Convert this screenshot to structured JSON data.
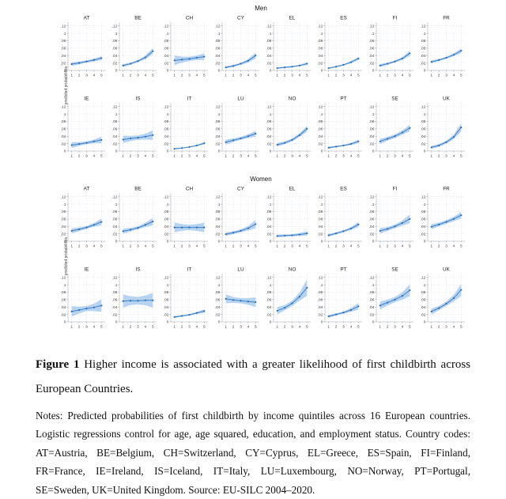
{
  "figure": {
    "panel_titles": {
      "men": "Men",
      "women": "Women"
    },
    "y_axis_label": "predicted probabilities"
  },
  "caption": {
    "figure_label": "Figure 1",
    "figure_title": "Higher income is associated with a greater likelihood of first childbirth across European Countries.",
    "notes": "Notes: Predicted probabilities of first childbirth by income quintiles across 16 European countries. Logistic regressions control for age, age squared, education, and employment status. Country codes: AT=Austria, BE=Belgium, CH=Switzerland, CY=Cyprus, EL=Greece, ES=Spain, FI=Finland, FR=France, IE=Ireland, IS=Iceland, IT=Italy, LU=Luxembourg, NO=Norway, PT=Portugal, SE=Sweden, UK=United Kingdom. Source: EU-SILC 2004–2020."
  },
  "colors": {
    "line": "#3f80c4",
    "marker": "#2e6cb4",
    "band": "#a9ccee",
    "grid": "#dbe3ed",
    "axis": "#98a0a8",
    "tick_text": "#3c3c3c"
  },
  "chart_data": {
    "type": "line",
    "x": [
      1,
      2,
      3,
      4,
      5
    ],
    "x_tick_labels": [
      "1",
      "2",
      "3",
      "4",
      "5"
    ],
    "ylim": [
      0,
      0.13
    ],
    "y_tick_values": [
      0,
      0.02,
      0.04,
      0.06,
      0.08,
      0.1,
      0.12
    ],
    "y_tick_labels": [
      "0",
      ".02",
      ".04",
      ".06",
      ".08",
      ".1",
      ".12"
    ],
    "ylabel": "predicted probabilities",
    "band_meaning": "confidence interval half-width per point",
    "panels": [
      {
        "group": "Men",
        "countries": [
          {
            "code": "AT",
            "values": [
              0.017,
              0.02,
              0.024,
              0.028,
              0.033
            ],
            "ci": [
              0.005,
              0.004,
              0.003,
              0.004,
              0.005
            ]
          },
          {
            "code": "BE",
            "values": [
              0.013,
              0.018,
              0.025,
              0.035,
              0.052
            ],
            "ci": [
              0.004,
              0.003,
              0.003,
              0.005,
              0.008
            ]
          },
          {
            "code": "CH",
            "values": [
              0.027,
              0.029,
              0.031,
              0.034,
              0.037
            ],
            "ci": [
              0.013,
              0.008,
              0.006,
              0.006,
              0.009
            ]
          },
          {
            "code": "CY",
            "values": [
              0.008,
              0.012,
              0.018,
              0.026,
              0.04
            ],
            "ci": [
              0.003,
              0.003,
              0.003,
              0.005,
              0.008
            ]
          },
          {
            "code": "EL",
            "values": [
              0.006,
              0.008,
              0.01,
              0.013,
              0.018
            ],
            "ci": [
              0.002,
              0.002,
              0.002,
              0.002,
              0.004
            ]
          },
          {
            "code": "ES",
            "values": [
              0.006,
              0.01,
              0.015,
              0.022,
              0.032
            ],
            "ci": [
              0.002,
              0.002,
              0.002,
              0.003,
              0.004
            ]
          },
          {
            "code": "FI",
            "values": [
              0.013,
              0.018,
              0.024,
              0.032,
              0.046
            ],
            "ci": [
              0.004,
              0.003,
              0.003,
              0.004,
              0.007
            ]
          },
          {
            "code": "FR",
            "values": [
              0.023,
              0.028,
              0.034,
              0.042,
              0.053
            ],
            "ci": [
              0.004,
              0.003,
              0.003,
              0.004,
              0.006
            ]
          },
          {
            "code": "IE",
            "values": [
              0.016,
              0.019,
              0.022,
              0.026,
              0.03
            ],
            "ci": [
              0.008,
              0.005,
              0.004,
              0.005,
              0.009
            ]
          },
          {
            "code": "IS",
            "values": [
              0.031,
              0.034,
              0.036,
              0.039,
              0.043
            ],
            "ci": [
              0.01,
              0.007,
              0.006,
              0.008,
              0.013
            ]
          },
          {
            "code": "IT",
            "values": [
              0.006,
              0.008,
              0.011,
              0.015,
              0.021
            ],
            "ci": [
              0.002,
              0.001,
              0.001,
              0.002,
              0.003
            ]
          },
          {
            "code": "LU",
            "values": [
              0.024,
              0.029,
              0.034,
              0.04,
              0.047
            ],
            "ci": [
              0.007,
              0.005,
              0.004,
              0.005,
              0.008
            ]
          },
          {
            "code": "NO",
            "values": [
              0.017,
              0.022,
              0.03,
              0.043,
              0.06
            ],
            "ci": [
              0.005,
              0.004,
              0.004,
              0.005,
              0.008
            ]
          },
          {
            "code": "PT",
            "values": [
              0.009,
              0.012,
              0.015,
              0.019,
              0.026
            ],
            "ci": [
              0.003,
              0.002,
              0.002,
              0.003,
              0.005
            ]
          },
          {
            "code": "SE",
            "values": [
              0.026,
              0.033,
              0.04,
              0.05,
              0.062
            ],
            "ci": [
              0.007,
              0.005,
              0.005,
              0.006,
              0.009
            ]
          },
          {
            "code": "UK",
            "values": [
              0.01,
              0.015,
              0.024,
              0.038,
              0.064
            ],
            "ci": [
              0.004,
              0.004,
              0.004,
              0.006,
              0.011
            ]
          }
        ]
      },
      {
        "group": "Women",
        "countries": [
          {
            "code": "AT",
            "values": [
              0.028,
              0.032,
              0.037,
              0.044,
              0.052
            ],
            "ci": [
              0.007,
              0.005,
              0.004,
              0.005,
              0.009
            ]
          },
          {
            "code": "BE",
            "values": [
              0.027,
              0.031,
              0.036,
              0.044,
              0.053
            ],
            "ci": [
              0.007,
              0.005,
              0.004,
              0.006,
              0.01
            ]
          },
          {
            "code": "CH",
            "values": [
              0.037,
              0.037,
              0.037,
              0.037,
              0.037
            ],
            "ci": [
              0.013,
              0.009,
              0.007,
              0.009,
              0.013
            ]
          },
          {
            "code": "CY",
            "values": [
              0.019,
              0.023,
              0.028,
              0.035,
              0.046
            ],
            "ci": [
              0.005,
              0.004,
              0.004,
              0.006,
              0.011
            ]
          },
          {
            "code": "EL",
            "values": [
              0.014,
              0.015,
              0.016,
              0.018,
              0.021
            ],
            "ci": [
              0.004,
              0.003,
              0.003,
              0.004,
              0.006
            ]
          },
          {
            "code": "ES",
            "values": [
              0.016,
              0.021,
              0.027,
              0.034,
              0.045
            ],
            "ci": [
              0.004,
              0.003,
              0.003,
              0.004,
              0.007
            ]
          },
          {
            "code": "FI",
            "values": [
              0.028,
              0.033,
              0.04,
              0.049,
              0.06
            ],
            "ci": [
              0.008,
              0.005,
              0.005,
              0.007,
              0.012
            ]
          },
          {
            "code": "FR",
            "values": [
              0.039,
              0.045,
              0.052,
              0.06,
              0.07
            ],
            "ci": [
              0.007,
              0.005,
              0.005,
              0.006,
              0.009
            ]
          },
          {
            "code": "IE",
            "values": [
              0.028,
              0.032,
              0.036,
              0.039,
              0.044
            ],
            "ci": [
              0.014,
              0.009,
              0.007,
              0.01,
              0.017
            ]
          },
          {
            "code": "IS",
            "values": [
              0.056,
              0.057,
              0.057,
              0.058,
              0.058
            ],
            "ci": [
              0.018,
              0.012,
              0.01,
              0.013,
              0.02
            ]
          },
          {
            "code": "IT",
            "values": [
              0.013,
              0.016,
              0.019,
              0.024,
              0.029
            ],
            "ci": [
              0.003,
              0.002,
              0.002,
              0.003,
              0.005
            ]
          },
          {
            "code": "LU",
            "values": [
              0.062,
              0.059,
              0.057,
              0.055,
              0.053
            ],
            "ci": [
              0.012,
              0.008,
              0.007,
              0.009,
              0.013
            ]
          },
          {
            "code": "NO",
            "values": [
              0.03,
              0.038,
              0.05,
              0.068,
              0.092
            ],
            "ci": [
              0.01,
              0.007,
              0.007,
              0.011,
              0.022
            ]
          },
          {
            "code": "PT",
            "values": [
              0.015,
              0.02,
              0.025,
              0.032,
              0.042
            ],
            "ci": [
              0.004,
              0.003,
              0.003,
              0.005,
              0.009
            ]
          },
          {
            "code": "SE",
            "values": [
              0.044,
              0.052,
              0.06,
              0.07,
              0.085
            ],
            "ci": [
              0.011,
              0.008,
              0.007,
              0.01,
              0.016
            ]
          },
          {
            "code": "UK",
            "values": [
              0.028,
              0.037,
              0.049,
              0.064,
              0.086
            ],
            "ci": [
              0.008,
              0.006,
              0.006,
              0.009,
              0.016
            ]
          }
        ]
      }
    ]
  }
}
